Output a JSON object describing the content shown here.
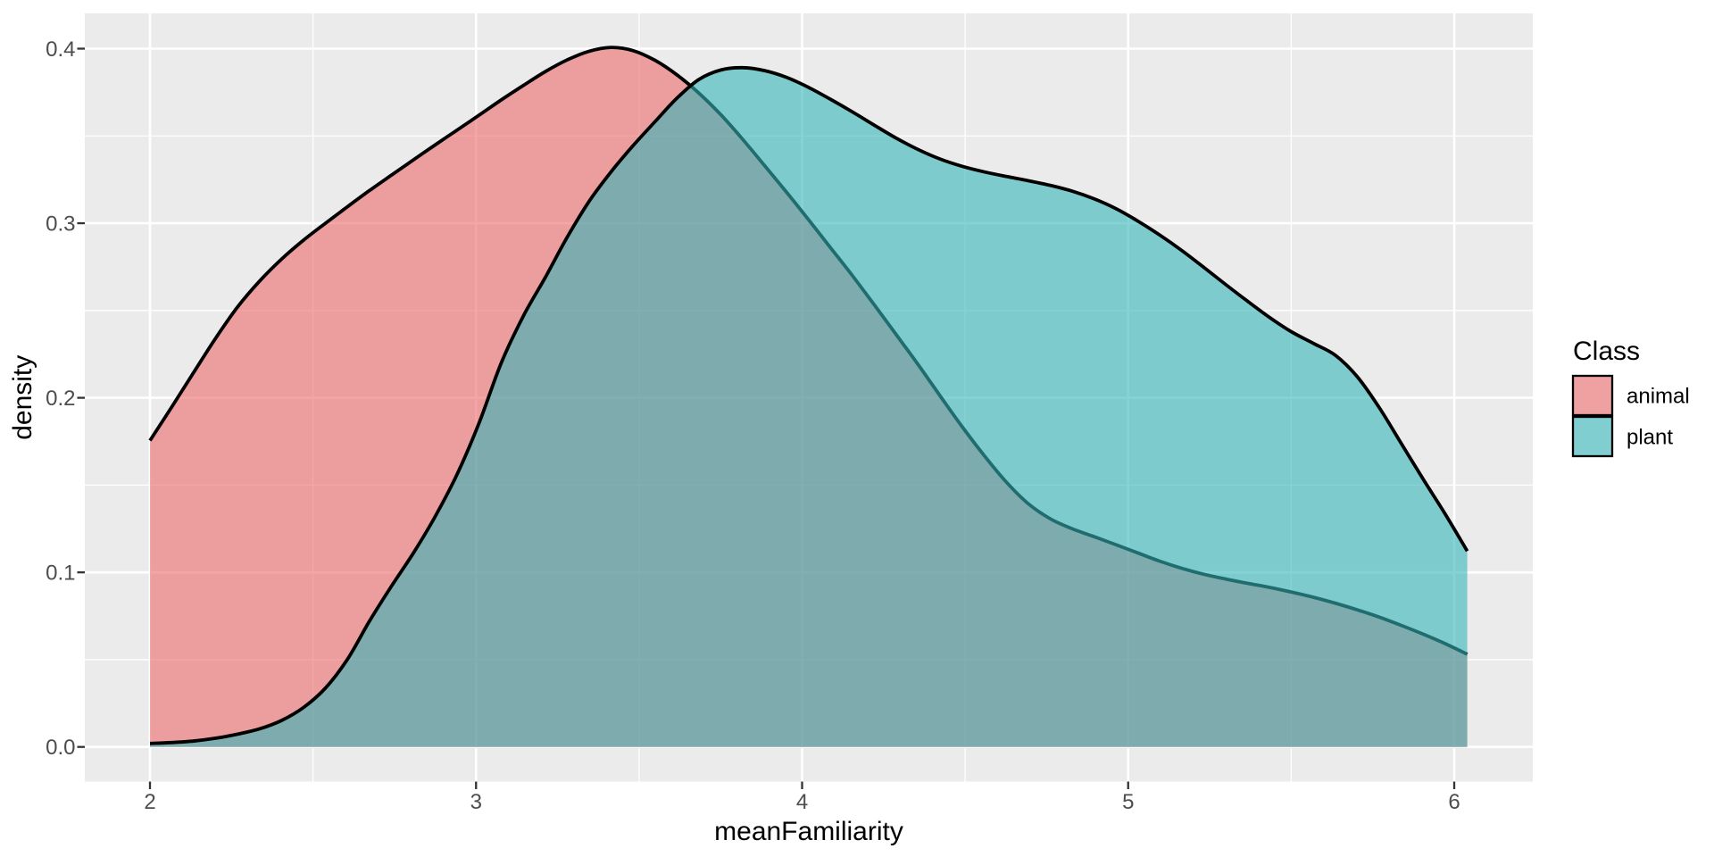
{
  "figure": {
    "kind": "ggplot-density-plot",
    "background": "#FFFFFF",
    "panel_background": "#EBEBEB",
    "grid_major_color": "#FFFFFF",
    "grid_minor_color": "#FFFFFF",
    "axis_tick_color": "#333333",
    "axis_text_color": "#4D4D4D",
    "axis_title_color": "#000000",
    "curve_stroke_color": "#000000"
  },
  "legend": {
    "title": "Class",
    "key_background": "#F2F2F2",
    "key_border": "#000000",
    "items": [
      {
        "label": "animal",
        "color": "#ED696B"
      },
      {
        "label": "plant",
        "color": "#35B6B9"
      }
    ]
  },
  "chart_data": {
    "type": "area",
    "subtype": "kernel-density",
    "title": "",
    "xlabel": "meanFamiliarity",
    "ylabel": "density",
    "xlim": [
      1.798,
      6.242
    ],
    "ylim": [
      -0.0193,
      0.4202
    ],
    "x_ticks": [
      2,
      3,
      4,
      5,
      6
    ],
    "x_tick_labels": [
      "2",
      "3",
      "4",
      "5",
      "6"
    ],
    "x_minor": [
      2.5,
      3.5,
      4.5,
      5.5
    ],
    "y_ticks": [
      0.0,
      0.1,
      0.2,
      0.3,
      0.4
    ],
    "y_tick_labels": [
      "0.0",
      "0.1",
      "0.2",
      "0.3",
      "0.4"
    ],
    "y_minor": [
      0.05,
      0.15,
      0.25,
      0.35
    ],
    "grid": true,
    "legend_position": "right",
    "fill_alpha": 0.6,
    "series": [
      {
        "name": "animal",
        "fill": "#ED696B",
        "points": [
          [
            2.0,
            0.1755
          ],
          [
            2.067,
            0.1948
          ],
          [
            2.135,
            0.2148
          ],
          [
            2.202,
            0.2343
          ],
          [
            2.269,
            0.2521
          ],
          [
            2.337,
            0.267
          ],
          [
            2.404,
            0.2795
          ],
          [
            2.471,
            0.2903
          ],
          [
            2.539,
            0.3001
          ],
          [
            2.606,
            0.3095
          ],
          [
            2.673,
            0.3187
          ],
          [
            2.741,
            0.3276
          ],
          [
            2.808,
            0.3363
          ],
          [
            2.875,
            0.3449
          ],
          [
            2.943,
            0.3535
          ],
          [
            3.01,
            0.362
          ],
          [
            3.077,
            0.3706
          ],
          [
            3.145,
            0.3789
          ],
          [
            3.212,
            0.3868
          ],
          [
            3.279,
            0.3935
          ],
          [
            3.347,
            0.3985
          ],
          [
            3.414,
            0.4007
          ],
          [
            3.481,
            0.3989
          ],
          [
            3.549,
            0.3933
          ],
          [
            3.616,
            0.385
          ],
          [
            3.683,
            0.3746
          ],
          [
            3.751,
            0.3621
          ],
          [
            3.818,
            0.348
          ],
          [
            3.885,
            0.333
          ],
          [
            3.953,
            0.3176
          ],
          [
            4.02,
            0.302
          ],
          [
            4.087,
            0.286
          ],
          [
            4.155,
            0.2698
          ],
          [
            4.222,
            0.2531
          ],
          [
            4.289,
            0.2361
          ],
          [
            4.357,
            0.2187
          ],
          [
            4.424,
            0.2009
          ],
          [
            4.491,
            0.1834
          ],
          [
            4.559,
            0.1668
          ],
          [
            4.626,
            0.1518
          ],
          [
            4.693,
            0.1394
          ],
          [
            4.761,
            0.1307
          ],
          [
            4.828,
            0.125
          ],
          [
            4.895,
            0.1205
          ],
          [
            4.963,
            0.1158
          ],
          [
            5.03,
            0.1111
          ],
          [
            5.097,
            0.1064
          ],
          [
            5.165,
            0.1023
          ],
          [
            5.232,
            0.0989
          ],
          [
            5.299,
            0.0962
          ],
          [
            5.367,
            0.0937
          ],
          [
            5.434,
            0.0914
          ],
          [
            5.501,
            0.0887
          ],
          [
            5.569,
            0.0857
          ],
          [
            5.636,
            0.0823
          ],
          [
            5.703,
            0.0785
          ],
          [
            5.771,
            0.0743
          ],
          [
            5.838,
            0.0696
          ],
          [
            5.905,
            0.0646
          ],
          [
            5.973,
            0.0591
          ],
          [
            6.04,
            0.0531
          ]
        ]
      },
      {
        "name": "plant",
        "fill": "#35B6B9",
        "points": [
          [
            2.0,
            0.002
          ],
          [
            2.067,
            0.0025
          ],
          [
            2.135,
            0.0034
          ],
          [
            2.202,
            0.005
          ],
          [
            2.269,
            0.0073
          ],
          [
            2.337,
            0.0104
          ],
          [
            2.404,
            0.0152
          ],
          [
            2.471,
            0.0226
          ],
          [
            2.539,
            0.0339
          ],
          [
            2.606,
            0.0503
          ],
          [
            2.673,
            0.072
          ],
          [
            2.741,
            0.0922
          ],
          [
            2.808,
            0.1111
          ],
          [
            2.875,
            0.1321
          ],
          [
            2.943,
            0.1566
          ],
          [
            3.01,
            0.1859
          ],
          [
            3.077,
            0.2198
          ],
          [
            3.145,
            0.2468
          ],
          [
            3.212,
            0.2688
          ],
          [
            3.279,
            0.2918
          ],
          [
            3.347,
            0.3126
          ],
          [
            3.414,
            0.3294
          ],
          [
            3.481,
            0.3443
          ],
          [
            3.549,
            0.3582
          ],
          [
            3.616,
            0.3716
          ],
          [
            3.683,
            0.3823
          ],
          [
            3.751,
            0.3878
          ],
          [
            3.818,
            0.3891
          ],
          [
            3.885,
            0.3874
          ],
          [
            3.953,
            0.3835
          ],
          [
            4.02,
            0.3778
          ],
          [
            4.087,
            0.371
          ],
          [
            4.155,
            0.3637
          ],
          [
            4.222,
            0.3561
          ],
          [
            4.289,
            0.3487
          ],
          [
            4.357,
            0.3421
          ],
          [
            4.424,
            0.3367
          ],
          [
            4.491,
            0.3326
          ],
          [
            4.559,
            0.3294
          ],
          [
            4.626,
            0.3268
          ],
          [
            4.693,
            0.3244
          ],
          [
            4.761,
            0.3217
          ],
          [
            4.828,
            0.3184
          ],
          [
            4.895,
            0.314
          ],
          [
            4.963,
            0.3083
          ],
          [
            5.03,
            0.3012
          ],
          [
            5.097,
            0.2932
          ],
          [
            5.165,
            0.2843
          ],
          [
            5.232,
            0.2747
          ],
          [
            5.299,
            0.2649
          ],
          [
            5.367,
            0.2552
          ],
          [
            5.434,
            0.246
          ],
          [
            5.501,
            0.2378
          ],
          [
            5.569,
            0.2311
          ],
          [
            5.636,
            0.2243
          ],
          [
            5.703,
            0.212
          ],
          [
            5.771,
            0.1941
          ],
          [
            5.838,
            0.1737
          ],
          [
            5.905,
            0.1533
          ],
          [
            5.973,
            0.1332
          ],
          [
            6.04,
            0.1122
          ]
        ]
      }
    ]
  }
}
